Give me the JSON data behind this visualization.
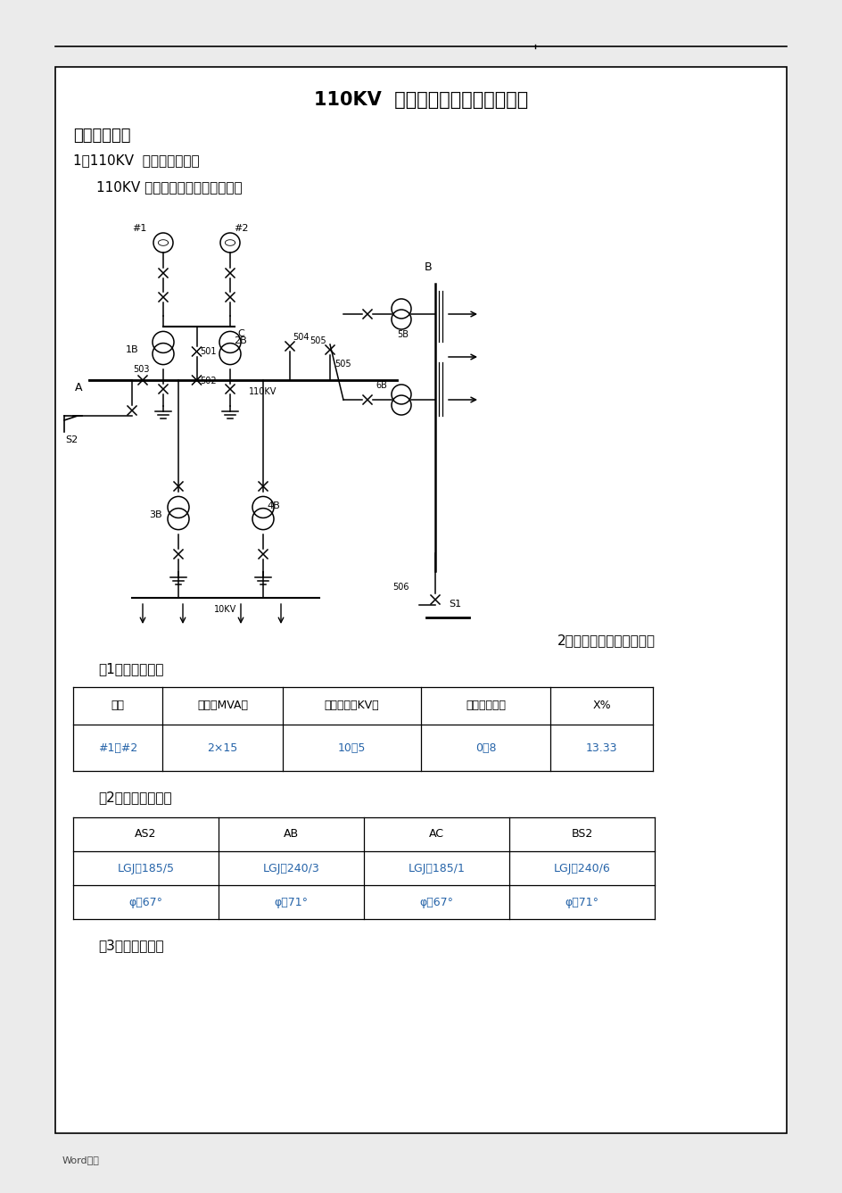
{
  "title": "110KV  电网线路继电保护课程设计",
  "section1": "一、设计资料",
  "subsection1": "1．110KV  系统电气主接线",
  "desc1": "110KV 系统电气主接线如下图所示",
  "section2_label": "2．系统各元件主要参数：",
  "gen_params_title": "（1）发电机参数",
  "gen_table_headers": [
    "机组",
    "容量（MVA）",
    "额定电压（KV）",
    "额定功率因数",
    "X%"
  ],
  "gen_table_rows": [
    [
      "#1。#2",
      "2×15",
      "10。5",
      "0。8",
      "13.33"
    ]
  ],
  "line_params_title": "（2）输电线路参数",
  "line_table_row1": [
    "AS2",
    "AB",
    "AC",
    "BS2"
  ],
  "line_table_row2": [
    "LGJ－185/5",
    "LGJ－240/3",
    "LGJ－185/1",
    "LGJ－240/6"
  ],
  "line_table_row3": [
    "φ＝67°",
    "φ＝71°",
    "φ＝67°",
    "φ＝71°"
  ],
  "transformer_title": "（3）变压器参数",
  "footer": "Word资料",
  "page_bg": "#ebebeb",
  "paper_bg": "#ffffff",
  "text_color": "#000000",
  "table_blue": "#2563a8",
  "header_text": "#000000"
}
